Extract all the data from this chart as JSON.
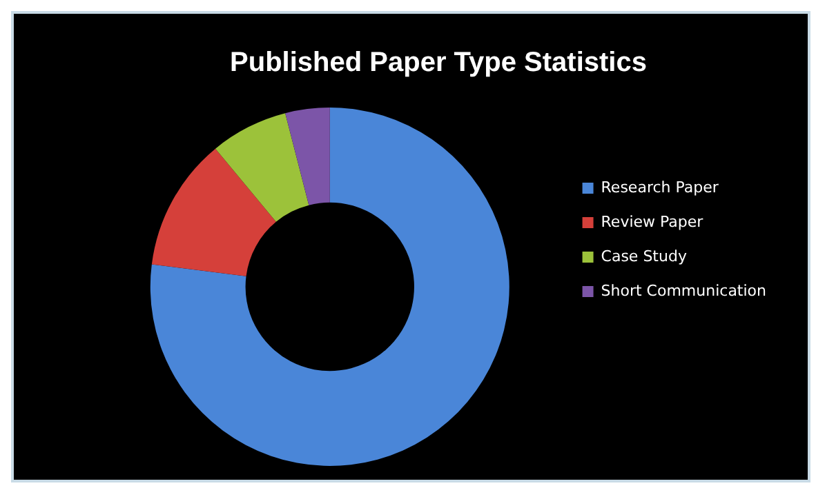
{
  "chart_data": {
    "type": "donut",
    "title": "Published Paper Type Statistics",
    "categories": [
      "Research Paper",
      "Review Paper",
      "Case Study",
      "Short Communication"
    ],
    "values": [
      77,
      12,
      7,
      4
    ],
    "colors": [
      "#4a86d8",
      "#d5403a",
      "#9cc23a",
      "#7c55a8"
    ],
    "legend": "right"
  }
}
